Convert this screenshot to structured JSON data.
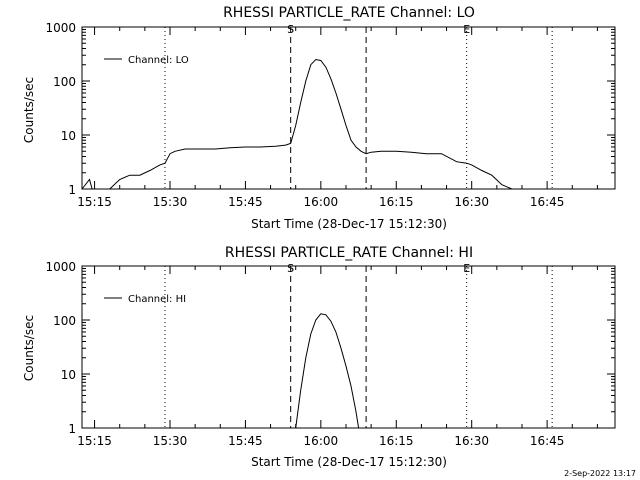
{
  "footer_date": "2-Sep-2022 13:17",
  "chart_data": [
    {
      "type": "line",
      "title": "RHESSI PARTICLE_RATE Channel: LO",
      "xlabel": "Start Time (28-Dec-17 15:12:30)",
      "ylabel": "Counts/sec",
      "y_scale": "log",
      "ylim": [
        1,
        1000
      ],
      "xlim": [
        "15:12:30",
        "16:58:30"
      ],
      "x_tick_labels": [
        "15:15",
        "15:30",
        "15:45",
        "16:00",
        "16:15",
        "16:30",
        "16:45"
      ],
      "y_tick_labels": [
        "1",
        "10",
        "100",
        "1000"
      ],
      "legend": "Channel: LO",
      "legend_position": "top-left",
      "markers": [
        {
          "label": "S",
          "time": "15:54:00",
          "style": "dashed"
        },
        {
          "label": "",
          "time": "16:09:00",
          "style": "dashed"
        },
        {
          "label": "E",
          "time": "16:29:00",
          "style": "dotted"
        },
        {
          "label": "",
          "time": "15:29:00",
          "style": "dotted"
        },
        {
          "label": "",
          "time": "16:46:00",
          "style": "dotted"
        }
      ],
      "series": [
        {
          "name": "Channel: LO",
          "x": [
            "15:12:30",
            "15:14:00",
            "15:14:30",
            "15:15:00",
            "15:16:00",
            "15:17:00",
            "15:18:00",
            "15:20:00",
            "15:22:00",
            "15:24:00",
            "15:26:00",
            "15:28:00",
            "15:29:00",
            "15:30:00",
            "15:31:00",
            "15:33:00",
            "15:36:00",
            "15:39:00",
            "15:42:00",
            "15:45:00",
            "15:48:00",
            "15:51:00",
            "15:53:00",
            "15:54:00",
            "15:55:00",
            "15:56:00",
            "15:57:00",
            "15:58:00",
            "15:59:00",
            "16:00:00",
            "16:01:00",
            "16:02:00",
            "16:03:00",
            "16:04:00",
            "16:05:00",
            "16:06:00",
            "16:07:00",
            "16:08:00",
            "16:09:00",
            "16:10:00",
            "16:12:00",
            "16:15:00",
            "16:18:00",
            "16:21:00",
            "16:24:00",
            "16:27:00",
            "16:29:00",
            "16:30:00",
            "16:32:00",
            "16:34:00",
            "16:36:00",
            "16:38:00",
            "16:40:00",
            "16:42:00",
            "16:44:00",
            "16:46:00"
          ],
          "y": [
            1,
            1.5,
            1,
            1,
            1,
            1,
            1,
            1.5,
            1.8,
            1.8,
            2.2,
            2.8,
            3.0,
            4.5,
            5.0,
            5.5,
            5.5,
            5.5,
            5.8,
            6.0,
            6.0,
            6.2,
            6.5,
            7,
            15,
            40,
            100,
            200,
            250,
            240,
            180,
            110,
            60,
            30,
            15,
            8,
            6,
            5,
            4.5,
            4.8,
            5,
            5,
            4.8,
            4.5,
            4.5,
            3.2,
            3.0,
            2.8,
            2.2,
            1.8,
            1.2,
            1,
            1,
            1,
            1,
            1
          ]
        }
      ]
    },
    {
      "type": "line",
      "title": "RHESSI PARTICLE_RATE Channel: HI",
      "xlabel": "Start Time (28-Dec-17 15:12:30)",
      "ylabel": "Counts/sec",
      "y_scale": "log",
      "ylim": [
        1,
        1000
      ],
      "xlim": [
        "15:12:30",
        "16:58:30"
      ],
      "x_tick_labels": [
        "15:15",
        "15:30",
        "15:45",
        "16:00",
        "16:15",
        "16:30",
        "16:45"
      ],
      "y_tick_labels": [
        "1",
        "10",
        "100",
        "1000"
      ],
      "legend": "Channel: HI",
      "legend_position": "top-left",
      "markers": [
        {
          "label": "S",
          "time": "15:54:00",
          "style": "dashed"
        },
        {
          "label": "",
          "time": "16:09:00",
          "style": "dashed"
        },
        {
          "label": "E",
          "time": "16:29:00",
          "style": "dotted"
        },
        {
          "label": "",
          "time": "15:29:00",
          "style": "dotted"
        },
        {
          "label": "",
          "time": "16:46:00",
          "style": "dotted"
        }
      ],
      "series": [
        {
          "name": "Channel: HI",
          "x": [
            "15:55:00",
            "15:56:00",
            "15:57:00",
            "15:58:00",
            "15:59:00",
            "16:00:00",
            "16:01:00",
            "16:02:00",
            "16:03:00",
            "16:04:00",
            "16:05:00",
            "16:06:00",
            "16:07:00",
            "16:07:30"
          ],
          "y": [
            1,
            5,
            20,
            55,
            100,
            130,
            125,
            95,
            60,
            30,
            14,
            6,
            2,
            1
          ]
        }
      ]
    }
  ]
}
